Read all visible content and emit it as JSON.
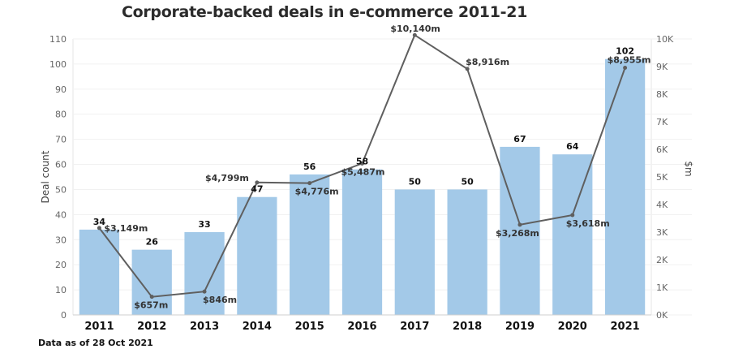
{
  "title": "Corporate-backed deals in e-commerce 2011-21",
  "footnote": "Data as of  28 Oct 2021",
  "chart_data": {
    "type": "bar",
    "title": "Corporate-backed deals in e-commerce 2011-21",
    "categories": [
      "2011",
      "2012",
      "2013",
      "2014",
      "2015",
      "2016",
      "2017",
      "2018",
      "2019",
      "2020",
      "2021"
    ],
    "series": [
      {
        "type": "bar",
        "axis": "left",
        "values": [
          34,
          26,
          33,
          47,
          56,
          58,
          50,
          50,
          67,
          64,
          102
        ],
        "labels": [
          "34",
          "26",
          "33",
          "47",
          "56",
          "58",
          "50",
          "50",
          "67",
          "64",
          "102"
        ],
        "color": "#a3c9e8"
      },
      {
        "type": "line",
        "axis": "right",
        "values": [
          3149,
          657,
          846,
          4799,
          4776,
          5487,
          10140,
          8916,
          3268,
          3618,
          8955
        ],
        "labels": [
          "$3,149m",
          "$657m",
          "$846m",
          "$4,799m",
          "$4,776m",
          "$5,487m",
          "$10,140m",
          "$8,916m",
          "$3,268m",
          "$3,618m",
          "$8,955m"
        ],
        "color": "#5f5f5f"
      }
    ],
    "ylabel_left": "Deal count",
    "ylabel_right": "$m",
    "ylim_left": [
      0,
      110
    ],
    "ylim_right": [
      0,
      10000
    ],
    "yticks_left": [
      "0",
      "10",
      "20",
      "30",
      "40",
      "50",
      "60",
      "70",
      "80",
      "90",
      "100",
      "110"
    ],
    "yticks_right": [
      "0K",
      "1K",
      "2K",
      "3K",
      "4K",
      "5K",
      "6K",
      "7K",
      "8K",
      "9K",
      "10K"
    ],
    "grid": true
  }
}
